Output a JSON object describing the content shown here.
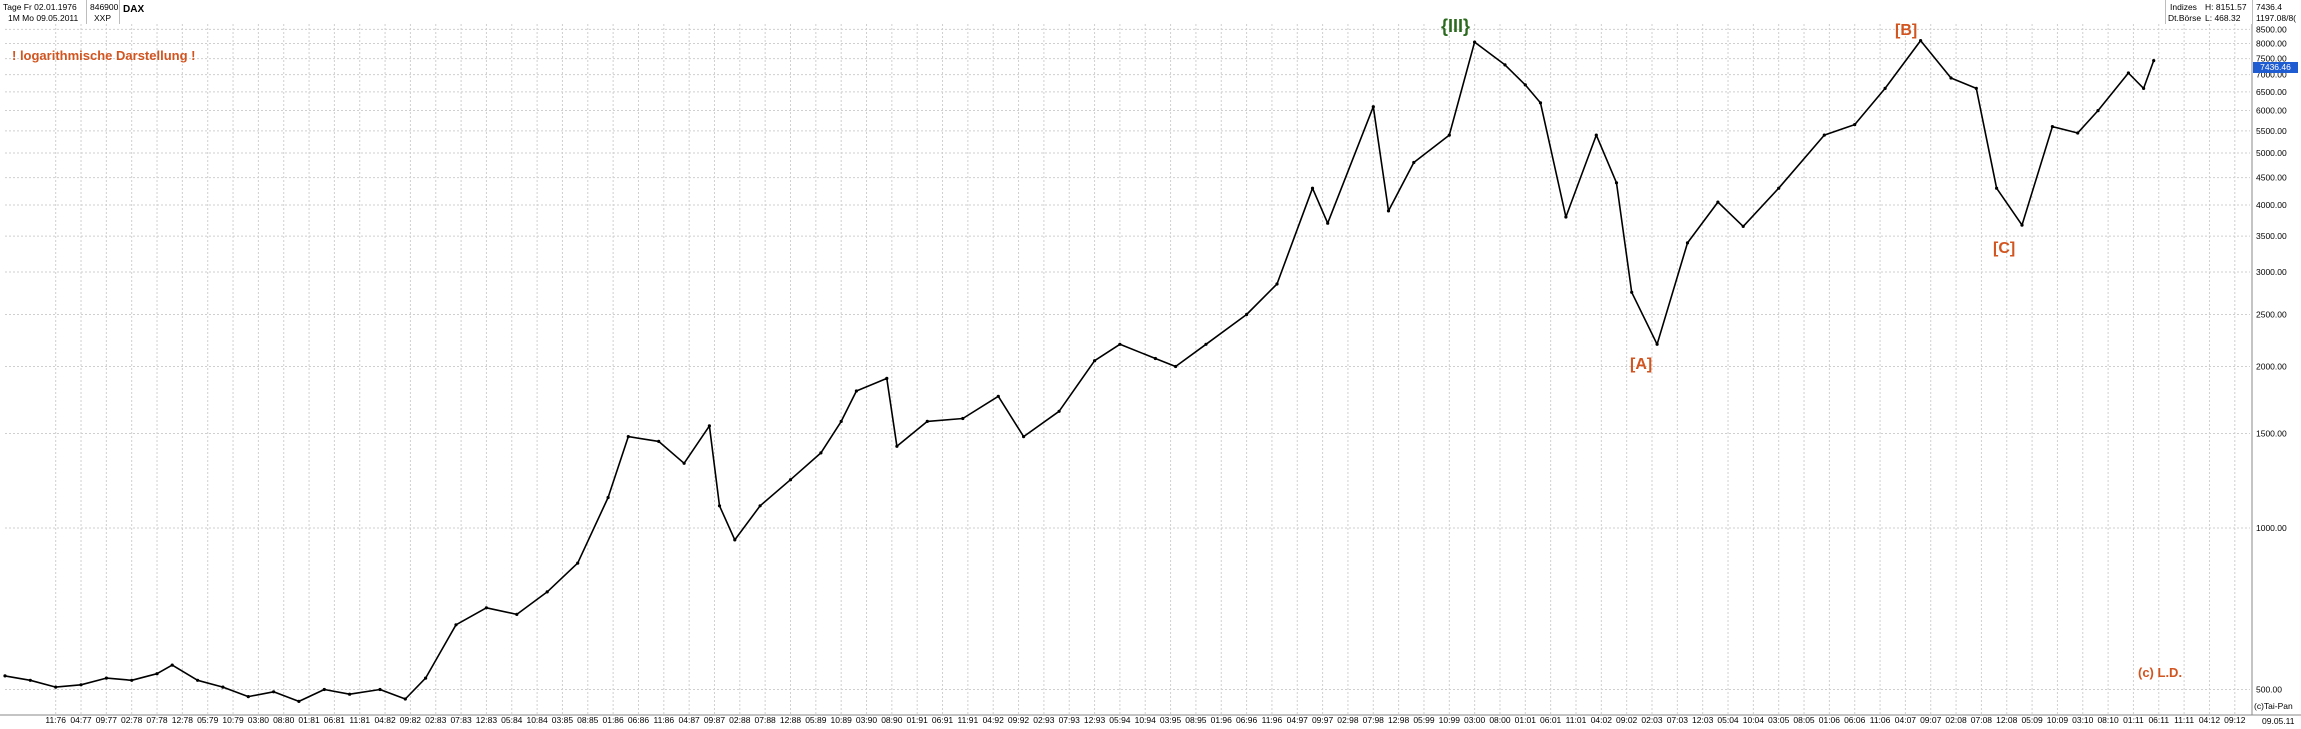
{
  "header": {
    "line1": "Tage Fr 02.01.1976",
    "line2": "1M   Mo 09.05.2011",
    "wkn": "846900",
    "exchange": "XXP",
    "symbol": "DAX",
    "right_group": "Indizes",
    "right_exchange": "Dt.Börse",
    "high_label": "H: 8151.57",
    "low_label": "L: 468.32",
    "last_value": "7436.4",
    "last_extra": "1197.08/8("
  },
  "annotations": {
    "log_note": "! logarithmische Darstellung !",
    "wave_III": "{III}",
    "wave_A": "[A]",
    "wave_B": "[B]",
    "wave_C": "[C]",
    "copyright": "(c) L.D.",
    "source": "(c)Tai-Pan",
    "last_price_box": "7436.46",
    "bottom_right": "09.05.11"
  },
  "colors": {
    "series": "#000000",
    "grid": "#cfcfcf",
    "annotation_orange": "#d2541f",
    "annotation_green": "#2b6a1e",
    "price_box": "#1f5bd1"
  },
  "chart_data": {
    "type": "line",
    "title": "DAX",
    "scale": "log",
    "ylim": [
      450,
      8700
    ],
    "xlim": [
      "1976-01",
      "2012-12"
    ],
    "grid": true,
    "y_ticks": [
      500,
      1000,
      1500,
      2000,
      2500,
      3000,
      3500,
      4000,
      4500,
      5000,
      5500,
      6000,
      6500,
      7000,
      7500,
      8000,
      8500
    ],
    "y_tick_labels": [
      "500.00",
      "1000.00",
      "1500.00",
      "2000.00",
      "2500.00",
      "3000.00",
      "3500.00",
      "4000.00",
      "4500.00",
      "5000.00",
      "5500.00",
      "6000.00",
      "6500.00",
      "7000.00",
      "7500.00",
      "8000.00",
      "8500.00"
    ],
    "x_tick_labels": [
      "11:76",
      "04:77",
      "09:77",
      "02:78",
      "07:78",
      "12:78",
      "05:79",
      "10:79",
      "03:80",
      "08:80",
      "01:81",
      "06:81",
      "11:81",
      "04:82",
      "09:82",
      "02:83",
      "07:83",
      "12:83",
      "05:84",
      "10:84",
      "03:85",
      "08:85",
      "01:86",
      "06:86",
      "11:86",
      "04:87",
      "09:87",
      "02:88",
      "07:88",
      "12:88",
      "05:89",
      "10:89",
      "03:90",
      "08:90",
      "01:91",
      "06:91",
      "11:91",
      "04:92",
      "09:92",
      "02:93",
      "07:93",
      "12:93",
      "05:94",
      "10:94",
      "03:95",
      "08:95",
      "01:96",
      "06:96",
      "11:96",
      "04:97",
      "09:97",
      "02:98",
      "07:98",
      "12:98",
      "05:99",
      "10:99",
      "03:00",
      "08:00",
      "01:01",
      "06:01",
      "11:01",
      "04:02",
      "09:02",
      "02:03",
      "07:03",
      "12:03",
      "05:04",
      "10:04",
      "03:05",
      "08:05",
      "01:06",
      "06:06",
      "11:06",
      "04:07",
      "09:07",
      "02:08",
      "07:08",
      "12:08",
      "05:09",
      "10:09",
      "03:10",
      "08:10",
      "01:11",
      "06:11",
      "11:11",
      "04:12",
      "09:12"
    ],
    "series": [
      {
        "name": "DAX",
        "points": [
          [
            "1976-01",
            530
          ],
          [
            "1976-06",
            520
          ],
          [
            "1976-11",
            505
          ],
          [
            "1977-04",
            510
          ],
          [
            "1977-09",
            525
          ],
          [
            "1978-02",
            520
          ],
          [
            "1978-07",
            535
          ],
          [
            "1978-10",
            555
          ],
          [
            "1979-03",
            520
          ],
          [
            "1979-08",
            505
          ],
          [
            "1980-01",
            485
          ],
          [
            "1980-06",
            495
          ],
          [
            "1980-11",
            475
          ],
          [
            "1981-04",
            500
          ],
          [
            "1981-09",
            490
          ],
          [
            "1982-03",
            500
          ],
          [
            "1982-08",
            480
          ],
          [
            "1982-12",
            525
          ],
          [
            "1983-06",
            660
          ],
          [
            "1983-12",
            710
          ],
          [
            "1984-06",
            690
          ],
          [
            "1984-12",
            760
          ],
          [
            "1985-06",
            860
          ],
          [
            "1985-12",
            1140
          ],
          [
            "1986-04",
            1480
          ],
          [
            "1986-10",
            1450
          ],
          [
            "1987-03",
            1320
          ],
          [
            "1987-08",
            1550
          ],
          [
            "1987-10",
            1100
          ],
          [
            "1988-01",
            950
          ],
          [
            "1988-06",
            1100
          ],
          [
            "1988-12",
            1230
          ],
          [
            "1989-06",
            1380
          ],
          [
            "1989-10",
            1580
          ],
          [
            "1990-01",
            1800
          ],
          [
            "1990-07",
            1900
          ],
          [
            "1990-09",
            1420
          ],
          [
            "1991-03",
            1580
          ],
          [
            "1991-10",
            1600
          ],
          [
            "1992-05",
            1760
          ],
          [
            "1992-10",
            1480
          ],
          [
            "1993-05",
            1650
          ],
          [
            "1993-12",
            2050
          ],
          [
            "1994-05",
            2200
          ],
          [
            "1994-12",
            2070
          ],
          [
            "1995-04",
            2000
          ],
          [
            "1995-10",
            2200
          ],
          [
            "1996-06",
            2500
          ],
          [
            "1996-12",
            2850
          ],
          [
            "1997-07",
            4300
          ],
          [
            "1997-10",
            3700
          ],
          [
            "1998-07",
            6100
          ],
          [
            "1998-10",
            3900
          ],
          [
            "1999-03",
            4800
          ],
          [
            "1999-10",
            5400
          ],
          [
            "2000-03",
            8050
          ],
          [
            "2000-09",
            7300
          ],
          [
            "2001-01",
            6700
          ],
          [
            "2001-04",
            6200
          ],
          [
            "2001-09",
            3800
          ],
          [
            "2002-03",
            5400
          ],
          [
            "2002-07",
            4400
          ],
          [
            "2002-10",
            2750
          ],
          [
            "2003-03",
            2200
          ],
          [
            "2003-09",
            3400
          ],
          [
            "2004-03",
            4050
          ],
          [
            "2004-08",
            3650
          ],
          [
            "2005-03",
            4300
          ],
          [
            "2005-12",
            5400
          ],
          [
            "2006-06",
            5650
          ],
          [
            "2006-12",
            6600
          ],
          [
            "2007-07",
            8100
          ],
          [
            "2008-01",
            6900
          ],
          [
            "2008-06",
            6600
          ],
          [
            "2008-10",
            4300
          ],
          [
            "2009-03",
            3670
          ],
          [
            "2009-09",
            5600
          ],
          [
            "2010-02",
            5450
          ],
          [
            "2010-06",
            6000
          ],
          [
            "2010-12",
            7050
          ],
          [
            "2011-03",
            6600
          ],
          [
            "2011-05",
            7436
          ]
        ]
      }
    ]
  }
}
